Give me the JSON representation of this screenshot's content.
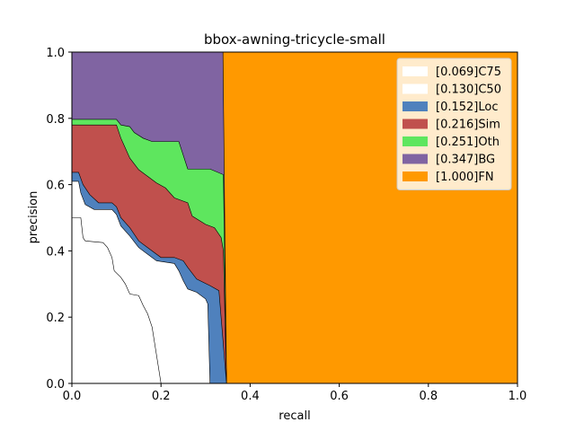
{
  "chart_data": {
    "type": "area",
    "title": "bbox-awning-tricycle-small",
    "xlabel": "recall",
    "ylabel": "precision",
    "xlim": [
      0,
      1
    ],
    "ylim": [
      0,
      1
    ],
    "x_ticks": [
      "0.0",
      "0.2",
      "0.4",
      "0.6",
      "0.8",
      "1.0"
    ],
    "y_ticks": [
      "0.0",
      "0.2",
      "0.4",
      "0.6",
      "0.8",
      "1.0"
    ],
    "grid": false,
    "legend_position": "top-right",
    "series": [
      {
        "name": "[1.000]FN",
        "color": "#ff9900",
        "points": [
          [
            0.339,
            1.0
          ],
          [
            1.0,
            1.0
          ]
        ]
      },
      {
        "name": "[0.347]BG",
        "color": "#8064a2",
        "points": [
          [
            0.0,
            1.0
          ],
          [
            0.339,
            1.0
          ],
          [
            0.347,
            0.0
          ]
        ]
      },
      {
        "name": "[0.251]Oth",
        "color": "#5ee65e",
        "points": [
          [
            0.0,
            0.797
          ],
          [
            0.04,
            0.797
          ],
          [
            0.1,
            0.797
          ],
          [
            0.11,
            0.78
          ],
          [
            0.13,
            0.775
          ],
          [
            0.14,
            0.757
          ],
          [
            0.16,
            0.74
          ],
          [
            0.18,
            0.73
          ],
          [
            0.24,
            0.73
          ],
          [
            0.26,
            0.647
          ],
          [
            0.31,
            0.647
          ],
          [
            0.34,
            0.63
          ],
          [
            0.347,
            0.0
          ]
        ]
      },
      {
        "name": "[0.216]Sim",
        "color": "#c0504d",
        "points": [
          [
            0.0,
            0.78
          ],
          [
            0.1,
            0.78
          ],
          [
            0.11,
            0.74
          ],
          [
            0.12,
            0.71
          ],
          [
            0.13,
            0.68
          ],
          [
            0.15,
            0.645
          ],
          [
            0.17,
            0.625
          ],
          [
            0.19,
            0.605
          ],
          [
            0.21,
            0.59
          ],
          [
            0.23,
            0.56
          ],
          [
            0.26,
            0.545
          ],
          [
            0.27,
            0.505
          ],
          [
            0.3,
            0.48
          ],
          [
            0.32,
            0.47
          ],
          [
            0.335,
            0.44
          ],
          [
            0.34,
            0.4
          ],
          [
            0.347,
            0.0
          ]
        ]
      },
      {
        "name": "[0.152]Loc",
        "color": "#4f81bd",
        "points": [
          [
            0.0,
            0.637
          ],
          [
            0.015,
            0.637
          ],
          [
            0.025,
            0.6
          ],
          [
            0.04,
            0.57
          ],
          [
            0.06,
            0.545
          ],
          [
            0.09,
            0.545
          ],
          [
            0.1,
            0.533
          ],
          [
            0.11,
            0.5
          ],
          [
            0.13,
            0.47
          ],
          [
            0.15,
            0.43
          ],
          [
            0.17,
            0.41
          ],
          [
            0.2,
            0.38
          ],
          [
            0.23,
            0.38
          ],
          [
            0.25,
            0.37
          ],
          [
            0.26,
            0.35
          ],
          [
            0.28,
            0.315
          ],
          [
            0.31,
            0.295
          ],
          [
            0.33,
            0.28
          ],
          [
            0.347,
            0.0
          ]
        ]
      },
      {
        "name": "[0.130]C50",
        "color": "#ffffff",
        "points": [
          [
            0.0,
            0.61
          ],
          [
            0.015,
            0.61
          ],
          [
            0.02,
            0.575
          ],
          [
            0.03,
            0.54
          ],
          [
            0.05,
            0.525
          ],
          [
            0.09,
            0.525
          ],
          [
            0.1,
            0.51
          ],
          [
            0.11,
            0.475
          ],
          [
            0.13,
            0.445
          ],
          [
            0.15,
            0.41
          ],
          [
            0.17,
            0.39
          ],
          [
            0.19,
            0.37
          ],
          [
            0.23,
            0.362
          ],
          [
            0.24,
            0.34
          ],
          [
            0.25,
            0.31
          ],
          [
            0.26,
            0.285
          ],
          [
            0.28,
            0.275
          ],
          [
            0.3,
            0.255
          ],
          [
            0.305,
            0.24
          ],
          [
            0.31,
            0.0
          ]
        ]
      },
      {
        "name": "[0.069]C75",
        "color": "#ffffff",
        "points": [
          [
            0.0,
            0.5
          ],
          [
            0.02,
            0.5
          ],
          [
            0.025,
            0.44
          ],
          [
            0.03,
            0.43
          ],
          [
            0.07,
            0.425
          ],
          [
            0.08,
            0.41
          ],
          [
            0.09,
            0.38
          ],
          [
            0.095,
            0.34
          ],
          [
            0.11,
            0.32
          ],
          [
            0.12,
            0.3
          ],
          [
            0.13,
            0.27
          ],
          [
            0.15,
            0.265
          ],
          [
            0.16,
            0.235
          ],
          [
            0.17,
            0.21
          ],
          [
            0.18,
            0.17
          ],
          [
            0.2,
            0.0
          ]
        ]
      }
    ]
  }
}
